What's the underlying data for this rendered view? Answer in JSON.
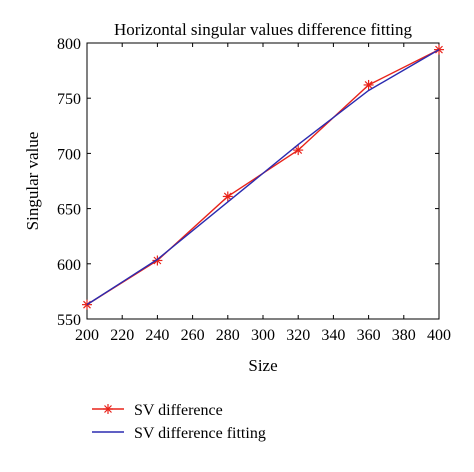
{
  "chart_data": {
    "type": "line",
    "title": "Horizontal singular values difference fitting",
    "xlabel": "Size",
    "ylabel": "Singular value",
    "xlim": [
      200,
      400
    ],
    "ylim": [
      550,
      800
    ],
    "xticks": [
      200,
      220,
      240,
      260,
      280,
      300,
      320,
      340,
      360,
      380,
      400
    ],
    "yticks": [
      550,
      600,
      650,
      700,
      750,
      800
    ],
    "grid": false,
    "legend_position": "bottom",
    "series": [
      {
        "name": "SV difference",
        "color": "#e8231a",
        "marker": "asterisk",
        "x": [
          200,
          240,
          280,
          320,
          360,
          400
        ],
        "y": [
          563,
          603,
          661,
          703,
          762,
          794
        ]
      },
      {
        "name": "SV difference fitting",
        "color": "#2b2bb0",
        "marker": "none",
        "x": [
          200,
          240,
          280,
          320,
          360,
          400
        ],
        "y": [
          563,
          604,
          656,
          708,
          757,
          794
        ]
      }
    ]
  }
}
